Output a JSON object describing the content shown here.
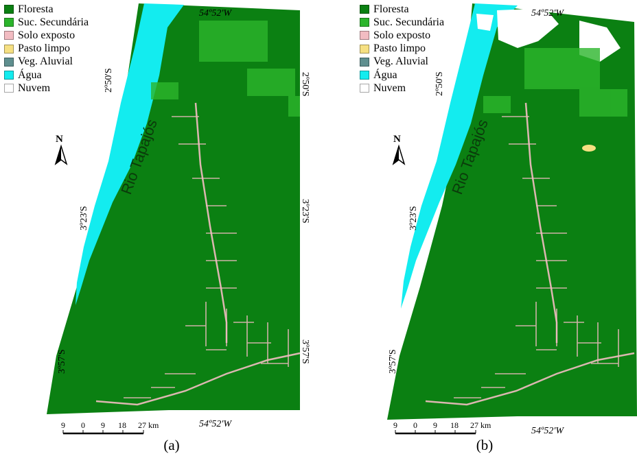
{
  "legend": {
    "items": [
      {
        "label": "Floresta",
        "color": "#0b8012"
      },
      {
        "label": "Suc. Secundária",
        "color": "#2cb52c"
      },
      {
        "label": "Solo exposto",
        "color": "#f2bcc2"
      },
      {
        "label": "Pasto limpo",
        "color": "#f6e082"
      },
      {
        "label": "Veg. Aluvial",
        "color": "#5f8f8f"
      },
      {
        "label": "Água",
        "color": "#13ecef"
      },
      {
        "label": "Nuvem",
        "color": "#ffffff"
      }
    ]
  },
  "map": {
    "river_label": "Rio Tapajós",
    "north_label": "N",
    "lon_label": "54º52'W",
    "lat_labels": [
      "2º50'S",
      "3º23'S",
      "3º57'S"
    ],
    "scale_bar": {
      "ticks": [
        "9",
        "0",
        "9",
        "18",
        "27"
      ],
      "unit": "km"
    }
  },
  "panels": [
    {
      "caption": "(a)"
    },
    {
      "caption": "(b)"
    }
  ],
  "colors": {
    "forest": "#0b8012",
    "water": "#13ecef",
    "secondary": "#2cb52c",
    "bare_soil": "#f2bcc2"
  }
}
